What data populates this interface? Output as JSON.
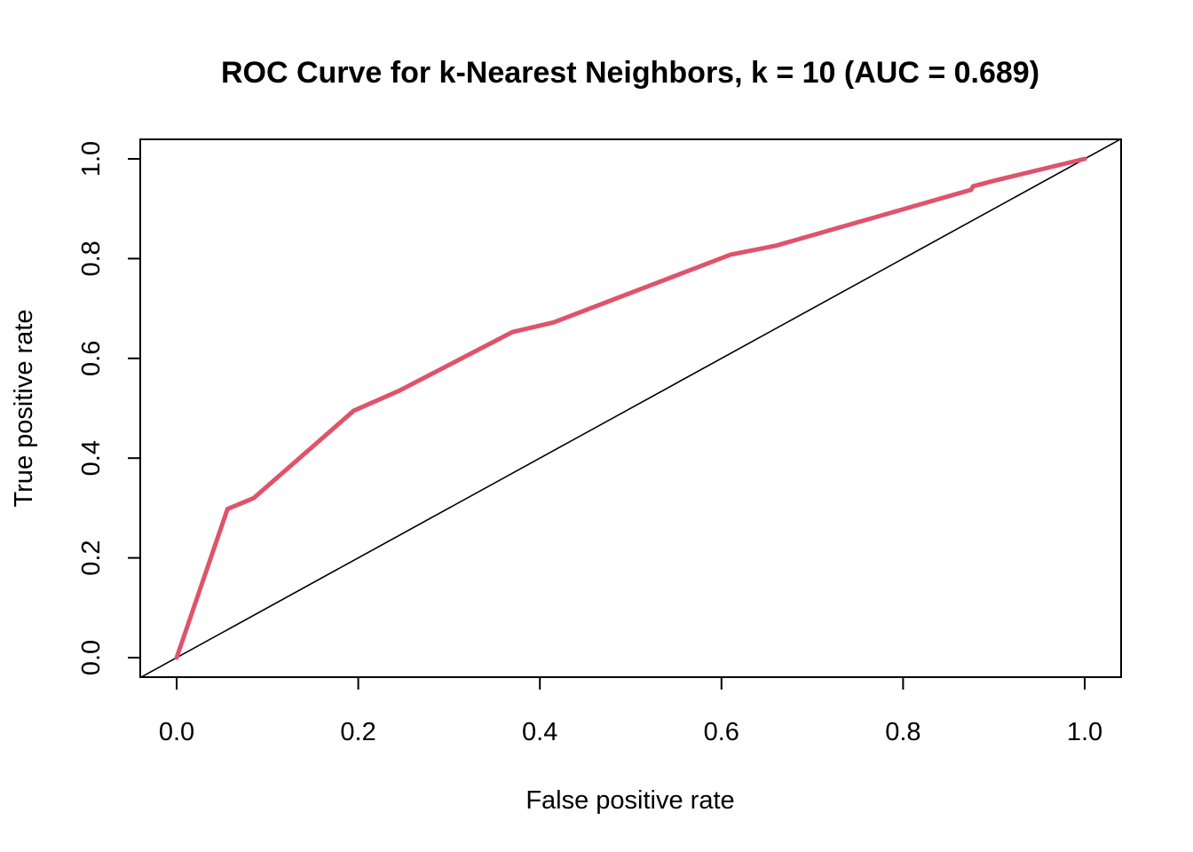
{
  "chart_data": {
    "type": "line",
    "title": "ROC Curve for k-Nearest Neighbors, k = 10 (AUC = 0.689)",
    "xlabel": "False positive rate",
    "ylabel": "True positive rate",
    "xlim": [
      0.0,
      1.0
    ],
    "ylim": [
      0.0,
      1.0
    ],
    "x_ticks": [
      "0.0",
      "0.2",
      "0.4",
      "0.6",
      "0.8",
      "1.0"
    ],
    "y_ticks": [
      "0.0",
      "0.2",
      "0.4",
      "0.6",
      "0.8",
      "1.0"
    ],
    "grid": false,
    "series": [
      {
        "color": "#DF536B",
        "x": [
          0.0,
          0.056,
          0.085,
          0.195,
          0.245,
          0.37,
          0.415,
          0.61,
          0.66,
          0.875,
          0.877,
          0.9,
          1.0
        ],
        "y": [
          0.0,
          0.298,
          0.32,
          0.495,
          0.535,
          0.653,
          0.672,
          0.808,
          0.826,
          0.938,
          0.945,
          0.956,
          1.0
        ]
      },
      {
        "color": "#000000",
        "x": [
          -0.04,
          1.04
        ],
        "y": [
          -0.04,
          1.04
        ]
      }
    ]
  }
}
